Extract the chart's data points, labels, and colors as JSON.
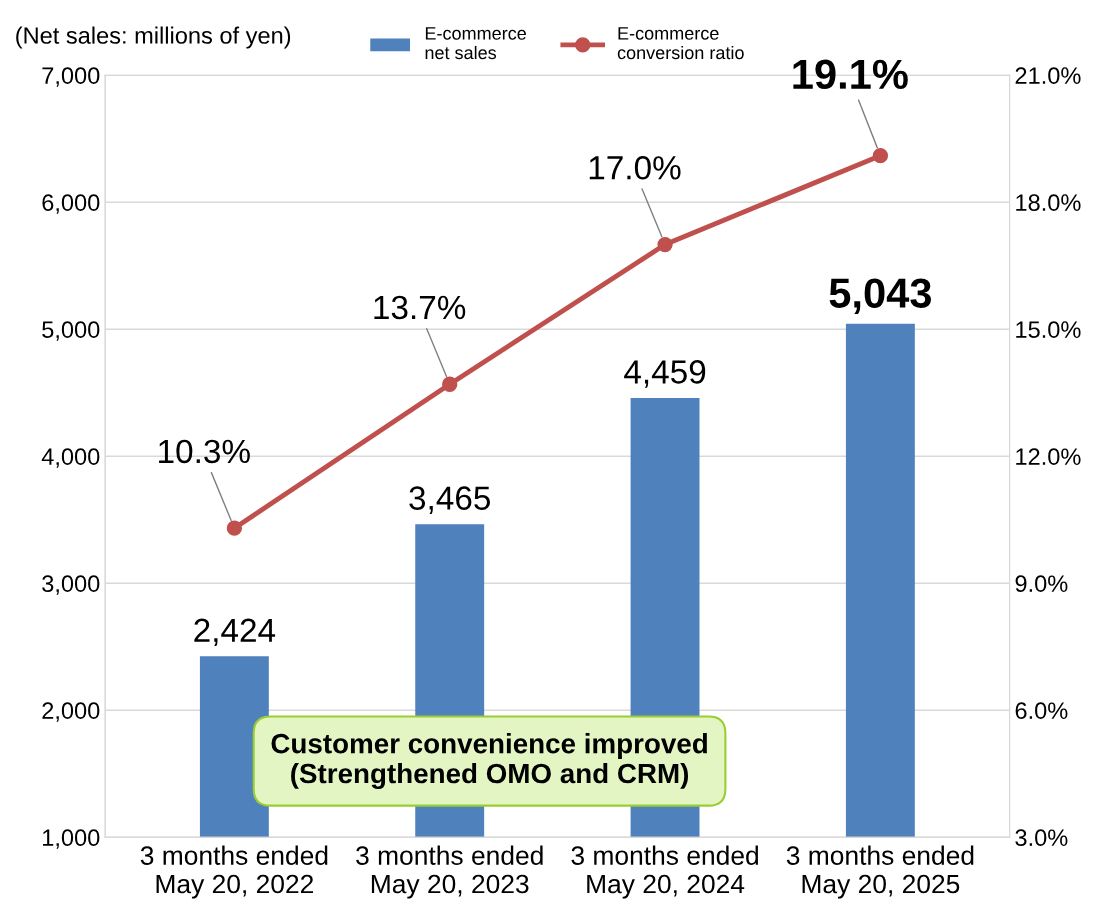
{
  "chart_data": {
    "type": "bar",
    "ylabel": "(Net sales: millions of yen)",
    "categories": [
      "3 months ended\nMay 20, 2022",
      "3 months ended\nMay 20, 2023",
      "3 months ended\nMay 20, 2024",
      "3 months ended\nMay 20, 2025"
    ],
    "series": [
      {
        "name": "E-commerce\nnet sales",
        "color": "#4f81bd",
        "values": [
          2424,
          3465,
          4459,
          5043
        ],
        "value_labels": [
          "2,424",
          "3,465",
          "4,459",
          "5,043"
        ]
      },
      {
        "name": "E-commerce\nconversion ratio",
        "type": "line",
        "axis": "y2",
        "color": "#c0504d",
        "marker": "circle",
        "values": [
          10.3,
          13.7,
          17.0,
          19.1
        ],
        "value_labels": [
          "10.3%",
          "13.7%",
          "17.0%",
          "19.1%"
        ]
      }
    ],
    "ylim": [
      1000,
      7000
    ],
    "yticks": [
      {
        "value": 1000,
        "label": "1,000"
      },
      {
        "value": 2000,
        "label": "2,000"
      },
      {
        "value": 3000,
        "label": "3,000"
      },
      {
        "value": 4000,
        "label": "4,000"
      },
      {
        "value": 5000,
        "label": "5,000"
      },
      {
        "value": 6000,
        "label": "6,000"
      },
      {
        "value": 7000,
        "label": "7,000"
      }
    ],
    "y2lim": [
      3,
      21
    ],
    "y2ticks": [
      {
        "value": 3,
        "label": "3.0%"
      },
      {
        "value": 6,
        "label": "6.0%"
      },
      {
        "value": 9,
        "label": "9.0%"
      },
      {
        "value": 12,
        "label": "12.0%"
      },
      {
        "value": 15,
        "label": "15.0%"
      },
      {
        "value": 18,
        "label": "18.0%"
      },
      {
        "value": 21,
        "label": "21.0%"
      }
    ],
    "grid": "y",
    "legend": "top",
    "annotations": [
      "Customer convenience improved\n(Strengthened OMO and CRM)"
    ]
  }
}
